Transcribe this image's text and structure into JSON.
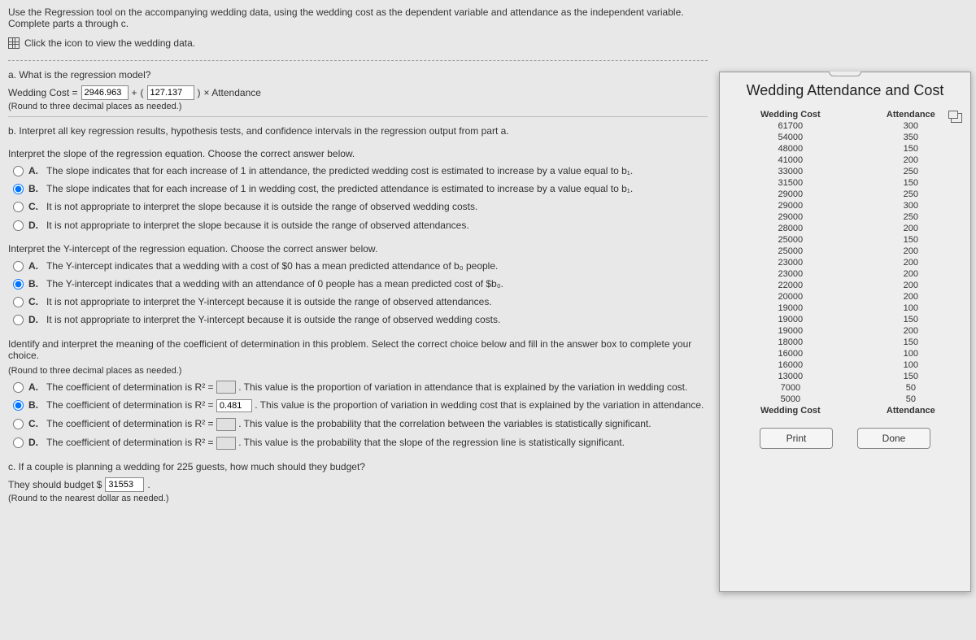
{
  "instruction": "Use the Regression tool on the accompanying wedding data, using the wedding cost as the dependent variable and attendance as the independent variable. Complete parts a through c.",
  "click_icon_text": "Click the icon to view the wedding data.",
  "part_a": {
    "question": "a. What is the regression model?",
    "eq_prefix": "Wedding Cost =",
    "b0": "2946.963",
    "plus": "+",
    "b1": "127.137",
    "times_x": "× Attendance",
    "round_note": "(Round to three decimal places as needed.)"
  },
  "part_b_intro": "b. Interpret all key regression results, hypothesis tests, and confidence intervals in the regression output from part a.",
  "slope": {
    "prompt": "Interpret the slope of the regression equation. Choose the correct answer below.",
    "A": "The slope indicates that for each increase of 1 in attendance, the predicted wedding cost is estimated to increase by a value equal to b₁.",
    "B": "The slope indicates that for each increase of 1 in wedding cost, the predicted attendance is estimated to increase by a value equal to b₁.",
    "C": "It is not appropriate to interpret the slope because it is outside the range of observed wedding costs.",
    "D": "It is not appropriate to interpret the slope because it is outside the range of observed attendances.",
    "selected": "B"
  },
  "yint": {
    "prompt": "Interpret the Y-intercept of the regression equation. Choose the correct answer below.",
    "A": "The Y-intercept indicates that a wedding with a cost of $0 has a mean predicted attendance of b₀ people.",
    "B": "The Y-intercept indicates that a wedding with an attendance of 0 people has a mean predicted cost of $b₀.",
    "C": "It is not appropriate to interpret the Y-intercept because it is outside the range of observed attendances.",
    "D": "It is not appropriate to interpret the Y-intercept because it is outside the range of observed wedding costs.",
    "selected": "B"
  },
  "r2": {
    "prompt": "Identify and interpret the meaning of the coefficient of determination in this problem. Select the correct choice below and fill in the answer box to complete your choice.",
    "round_note": "(Round to three decimal places as needed.)",
    "prefix": "The coefficient of determination is R² =",
    "A_suffix": ". This value is the proportion of variation in attendance that is explained by the variation in wedding cost.",
    "B_value": "0.481",
    "B_suffix": ". This value is the proportion of variation in wedding cost that is explained by the variation in attendance.",
    "C_suffix": ". This value is the probability that the correlation between the variables is statistically significant.",
    "D_suffix": ". This value is the probability that the slope of the regression line is statistically significant.",
    "selected": "B"
  },
  "part_c": {
    "question": "c. If a couple is planning a wedding for 225 guests, how much should they budget?",
    "answer_prefix": "They should budget $",
    "value": "31553",
    "round_note": "(Round to the nearest dollar as needed.)"
  },
  "popup": {
    "title": "Wedding Attendance and Cost",
    "col1": "Wedding Cost",
    "col2": "Attendance",
    "rows": [
      [
        "61700",
        "300"
      ],
      [
        "54000",
        "350"
      ],
      [
        "48000",
        "150"
      ],
      [
        "41000",
        "200"
      ],
      [
        "33000",
        "250"
      ],
      [
        "31500",
        "150"
      ],
      [
        "29000",
        "250"
      ],
      [
        "29000",
        "300"
      ],
      [
        "29000",
        "250"
      ],
      [
        "28000",
        "200"
      ],
      [
        "25000",
        "150"
      ],
      [
        "25000",
        "200"
      ],
      [
        "23000",
        "200"
      ],
      [
        "23000",
        "200"
      ],
      [
        "22000",
        "200"
      ],
      [
        "20000",
        "200"
      ],
      [
        "19000",
        "100"
      ],
      [
        "19000",
        "150"
      ],
      [
        "19000",
        "200"
      ],
      [
        "18000",
        "150"
      ],
      [
        "16000",
        "100"
      ],
      [
        "16000",
        "100"
      ],
      [
        "13000",
        "150"
      ],
      [
        "7000",
        "50"
      ],
      [
        "5000",
        "50"
      ]
    ],
    "footer_col1": "Wedding Cost",
    "footer_col2": "Attendance",
    "print": "Print",
    "done": "Done"
  },
  "labels": {
    "A": "A.",
    "B": "B.",
    "C": "C.",
    "D": "D."
  }
}
